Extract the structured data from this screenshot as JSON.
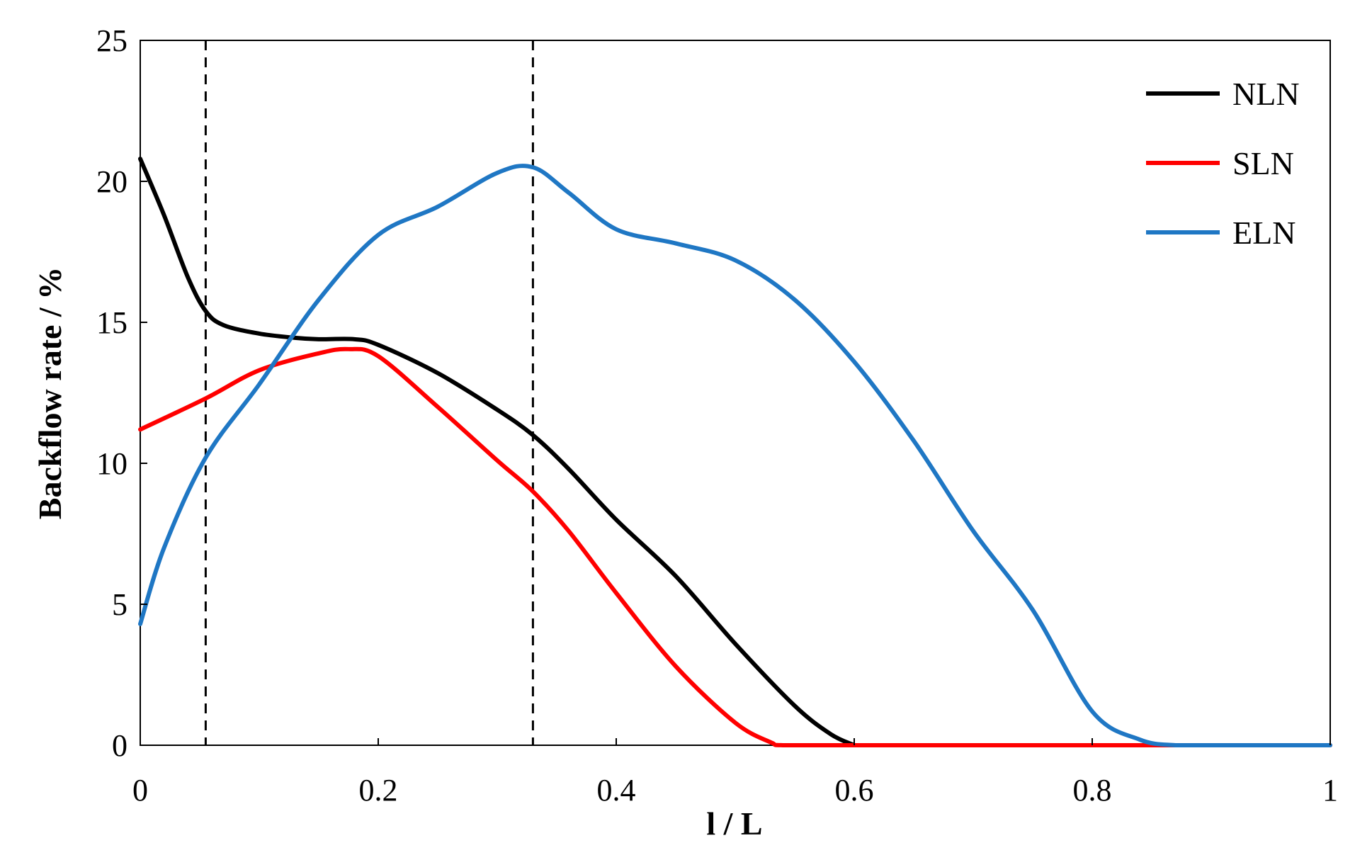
{
  "chart_data": {
    "type": "line",
    "xlabel": "l / L",
    "ylabel": "Backflow rate / %",
    "xlim": [
      0,
      1
    ],
    "ylim": [
      0,
      25
    ],
    "xticks": [
      0,
      0.2,
      0.4,
      0.6,
      0.8,
      1
    ],
    "xtick_labels": [
      "0",
      "0.2",
      "0.4",
      "0.6",
      "0.8",
      "1"
    ],
    "yticks": [
      0,
      5,
      10,
      15,
      20,
      25
    ],
    "ytick_labels": [
      "0",
      "5",
      "10",
      "15",
      "20",
      "25"
    ],
    "grid": false,
    "legend_position": "top-right",
    "reference_lines_x": [
      0.055,
      0.33
    ],
    "series": [
      {
        "name": "NLN",
        "color": "#000000",
        "x": [
          0,
          0.02,
          0.04,
          0.055,
          0.07,
          0.1,
          0.13,
          0.15,
          0.18,
          0.2,
          0.25,
          0.3,
          0.33,
          0.36,
          0.4,
          0.45,
          0.5,
          0.55,
          0.58,
          0.6
        ],
        "y": [
          20.8,
          18.8,
          16.6,
          15.4,
          14.9,
          14.6,
          14.45,
          14.4,
          14.4,
          14.2,
          13.2,
          11.9,
          11.0,
          9.8,
          8.0,
          6.0,
          3.6,
          1.4,
          0.4,
          0
        ]
      },
      {
        "name": "SLN",
        "color": "#ff0000",
        "x": [
          0,
          0.055,
          0.1,
          0.15,
          0.175,
          0.2,
          0.25,
          0.3,
          0.33,
          0.36,
          0.4,
          0.45,
          0.5,
          0.53,
          0.54,
          0.6,
          0.7,
          0.8,
          0.9,
          1.0
        ],
        "y": [
          11.2,
          12.3,
          13.3,
          13.9,
          14.05,
          13.8,
          12.0,
          10.1,
          9.0,
          7.6,
          5.4,
          2.8,
          0.8,
          0.1,
          0,
          0,
          0,
          0,
          0,
          0
        ]
      },
      {
        "name": "ELN",
        "color": "#1f77c4",
        "x": [
          0,
          0.02,
          0.055,
          0.1,
          0.15,
          0.2,
          0.25,
          0.3,
          0.33,
          0.36,
          0.4,
          0.45,
          0.5,
          0.55,
          0.6,
          0.65,
          0.7,
          0.75,
          0.8,
          0.84,
          0.87,
          0.9,
          1.0
        ],
        "y": [
          4.3,
          7.0,
          10.2,
          12.8,
          15.8,
          18.1,
          19.1,
          20.3,
          20.5,
          19.6,
          18.3,
          17.8,
          17.2,
          15.8,
          13.6,
          10.8,
          7.6,
          4.8,
          1.2,
          0.2,
          0,
          0,
          0
        ]
      }
    ]
  }
}
